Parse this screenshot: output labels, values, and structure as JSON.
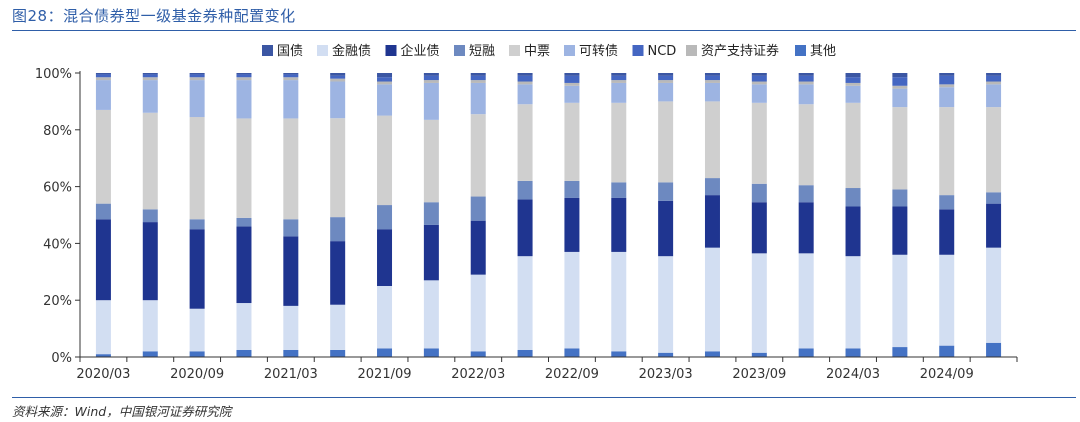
{
  "figure": {
    "title": "图28：混合债券型一级基金券种配置变化",
    "source": "资料来源：Wind，中国银河证券研究院"
  },
  "chart_data": {
    "type": "bar",
    "stacked": true,
    "normalized": true,
    "ylim": [
      0,
      100
    ],
    "ytick_labels": [
      "0%",
      "20%",
      "40%",
      "60%",
      "80%",
      "100%"
    ],
    "grid": false,
    "legend_position": "top",
    "categories": [
      "2020/03",
      "2020/06",
      "2020/09",
      "2020/12",
      "2021/03",
      "2021/06",
      "2021/09",
      "2021/12",
      "2022/03",
      "2022/06",
      "2022/09",
      "2022/12",
      "2023/03",
      "2023/06",
      "2023/09",
      "2023/12",
      "2024/03",
      "2024/06",
      "2024/09",
      "2024/12"
    ],
    "xtick_labels": [
      "2020/03",
      "",
      "2020/09",
      "",
      "2021/03",
      "",
      "2021/09",
      "",
      "2022/03",
      "",
      "2022/09",
      "",
      "2023/03",
      "",
      "2023/09",
      "",
      "2024/03",
      "",
      "2024/09",
      ""
    ],
    "series": [
      {
        "name": "其他",
        "color": "#4472c4",
        "values": [
          1,
          2,
          2,
          2.5,
          2.5,
          2.5,
          3,
          3,
          2,
          2.5,
          3,
          2,
          1.5,
          2,
          1.5,
          3,
          3,
          3.5,
          4,
          5
        ]
      },
      {
        "name": "金融债",
        "color": "#d2def2",
        "values": [
          19,
          18,
          15,
          16.5,
          15.5,
          16,
          22,
          24,
          27,
          33,
          34,
          35,
          34,
          36.5,
          35,
          33.5,
          32.5,
          32.5,
          32,
          33.5
        ]
      },
      {
        "name": "企业债",
        "color": "#1f3590",
        "values": [
          28.5,
          27.5,
          28,
          27,
          24.5,
          22.5,
          20,
          19.5,
          19,
          20,
          19,
          19,
          19.5,
          18.5,
          18,
          18,
          17.5,
          17,
          16,
          15.5
        ]
      },
      {
        "name": "短融",
        "color": "#6d89c0",
        "values": [
          5.5,
          4.5,
          3.5,
          3,
          6,
          8.5,
          8.5,
          8,
          8.5,
          6.5,
          6,
          5.5,
          6.5,
          6,
          6.5,
          6,
          6.5,
          6,
          5,
          4
        ]
      },
      {
        "name": "中票",
        "color": "#cfcfcf",
        "values": [
          33,
          34,
          36,
          35,
          35.5,
          35,
          31.5,
          29,
          29,
          27,
          27.5,
          28,
          28.5,
          27,
          28.5,
          28.5,
          30,
          29,
          31,
          30
        ]
      },
      {
        "name": "可转债",
        "color": "#9db4e2",
        "values": [
          10.5,
          11.5,
          13,
          13.5,
          13.5,
          13,
          11,
          13,
          11,
          7,
          6,
          7,
          6.5,
          6.5,
          6.5,
          7,
          6,
          6.5,
          7,
          8
        ]
      },
      {
        "name": "资产支持证券",
        "color": "#b9b9b9",
        "values": [
          1,
          1,
          1,
          1,
          1,
          1,
          1,
          1,
          1,
          1,
          1,
          1,
          1,
          1,
          1,
          1,
          1,
          1,
          1,
          1
        ]
      },
      {
        "name": "NCD",
        "color": "#4466c2",
        "values": [
          1,
          1,
          1,
          1,
          1,
          1,
          1.5,
          1.5,
          1.5,
          2,
          2.5,
          1.5,
          1.5,
          1.5,
          2,
          2,
          2,
          3,
          3,
          2
        ]
      },
      {
        "name": "国债",
        "color": "#3b56a3",
        "values": [
          0.5,
          0.5,
          0.5,
          0.5,
          0.5,
          1,
          1.5,
          1,
          1,
          1,
          1,
          1,
          1,
          1,
          1,
          1,
          1.5,
          1.5,
          1,
          1
        ]
      }
    ],
    "legend_order": [
      "国债",
      "金融债",
      "企业债",
      "短融",
      "中票",
      "可转债",
      "NCD",
      "资产支持证券",
      "其他"
    ]
  }
}
